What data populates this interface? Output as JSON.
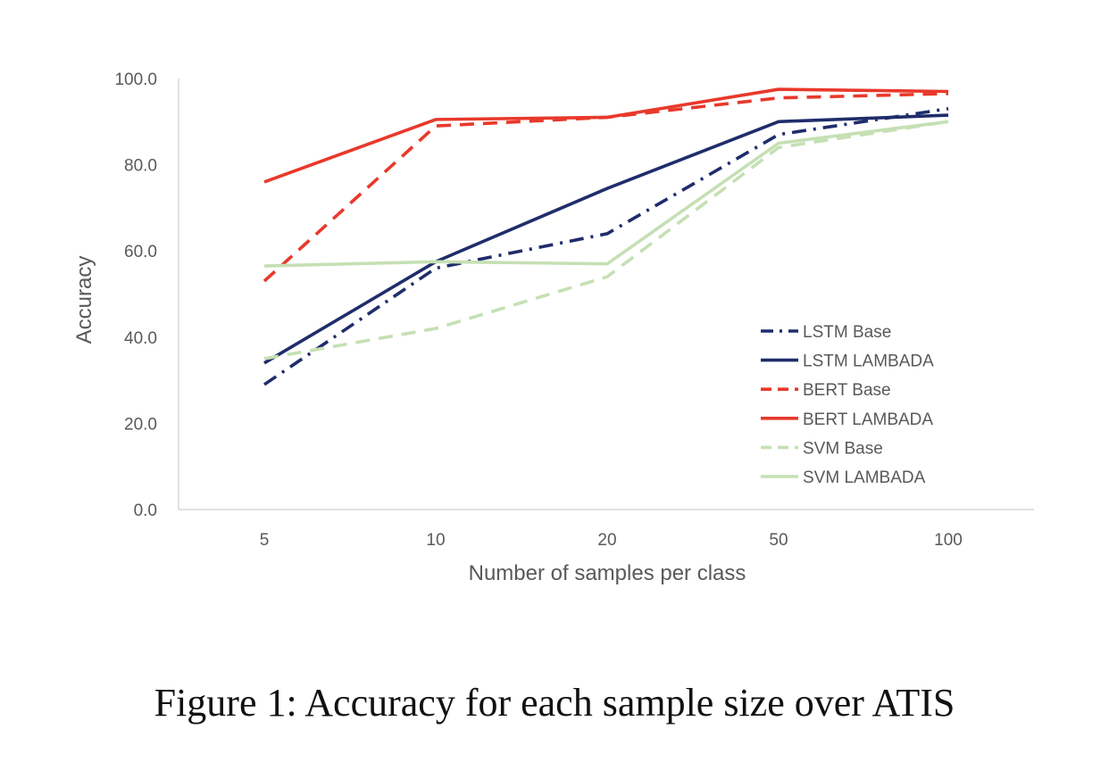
{
  "caption": "Figure 1:  Accuracy for each sample size over ATIS",
  "chart_data": {
    "type": "line",
    "title": "",
    "xlabel": "Number of samples per class",
    "ylabel": "Accuracy",
    "categories": [
      "5",
      "10",
      "20",
      "50",
      "100"
    ],
    "ylim": [
      0,
      100
    ],
    "yticks": [
      "0.0",
      "20.0",
      "40.0",
      "60.0",
      "80.0",
      "100.0"
    ],
    "grid": false,
    "legend_position": "lower-right",
    "series": [
      {
        "name": "LSTM Base",
        "values": [
          29,
          56,
          64,
          87,
          93
        ],
        "color": "#1f2d6b",
        "dash": "dashdot"
      },
      {
        "name": "LSTM LAMBADA",
        "values": [
          34,
          57.5,
          74.5,
          90,
          91.5
        ],
        "color": "#1f2d6b",
        "dash": "solid"
      },
      {
        "name": "BERT Base",
        "values": [
          53,
          89,
          91,
          95.5,
          96.5
        ],
        "color": "#e8392b",
        "dash": "dashed"
      },
      {
        "name": "BERT LAMBADA",
        "values": [
          76,
          90.5,
          91,
          97.5,
          97
        ],
        "color": "#e8392b",
        "dash": "solid"
      },
      {
        "name": "SVM Base",
        "values": [
          35,
          42,
          54,
          84,
          90
        ],
        "color": "#c5e0b4",
        "dash": "dashed"
      },
      {
        "name": "SVM LAMBADA",
        "values": [
          56.5,
          57.5,
          57,
          85,
          90
        ],
        "color": "#c5e0b4",
        "dash": "solid"
      }
    ]
  }
}
